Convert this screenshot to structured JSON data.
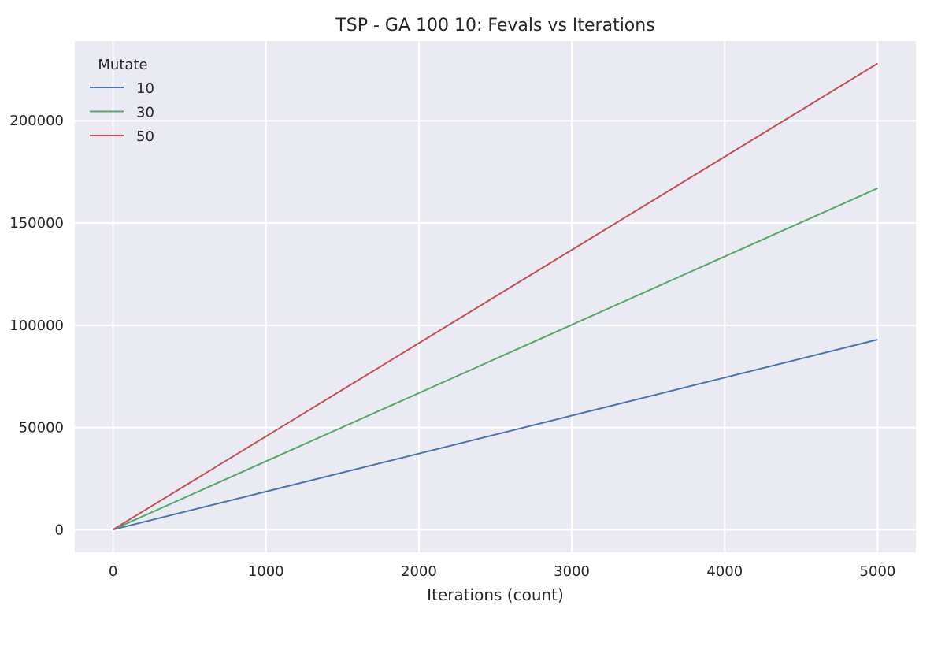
{
  "chart_data": {
    "type": "line",
    "title": "TSP - GA 100 10: Fevals vs Iterations",
    "xlabel": "Iterations (count)",
    "ylabel": "",
    "xlim": [
      -250,
      5250
    ],
    "ylim": [
      -11000,
      239000
    ],
    "xticks": [
      0,
      1000,
      2000,
      3000,
      4000,
      5000
    ],
    "yticks": [
      0,
      50000,
      100000,
      150000,
      200000
    ],
    "grid": true,
    "background": "#eaeaf2",
    "legend": {
      "title": "Mutate",
      "position": "top-left"
    },
    "series": [
      {
        "name": "10",
        "color": "#4c72b0",
        "x": [
          0,
          5000
        ],
        "y": [
          100,
          93000
        ]
      },
      {
        "name": "30",
        "color": "#55a868",
        "x": [
          0,
          5000
        ],
        "y": [
          100,
          167000
        ]
      },
      {
        "name": "50",
        "color": "#c44e52",
        "x": [
          0,
          5000
        ],
        "y": [
          100,
          228000
        ]
      }
    ]
  }
}
